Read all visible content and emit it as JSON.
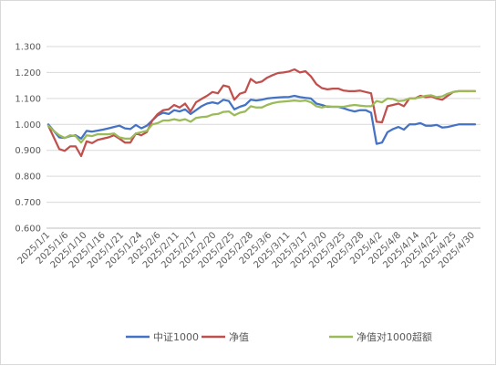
{
  "chart_data": {
    "type": "line",
    "title": "",
    "xlabel": "",
    "ylabel": "",
    "ylim": [
      0.6,
      1.3
    ],
    "yticks": [
      "0.600",
      "0.700",
      "0.800",
      "0.900",
      "1.000",
      "1.100",
      "1.200",
      "1.300"
    ],
    "ytick_values": [
      0.6,
      0.7,
      0.8,
      0.9,
      1.0,
      1.1,
      1.2,
      1.3
    ],
    "grid": true,
    "legend_position": "bottom",
    "x": [
      "2025/1/1",
      "2025/1/2",
      "2025/1/3",
      "2025/1/6",
      "2025/1/7",
      "2025/1/8",
      "2025/1/9",
      "2025/1/10",
      "2025/1/13",
      "2025/1/14",
      "2025/1/15",
      "2025/1/16",
      "2025/1/17",
      "2025/1/20",
      "2025/1/21",
      "2025/1/22",
      "2025/1/23",
      "2025/1/24",
      "2025/1/27",
      "2025/2/5",
      "2025/2/6",
      "2025/2/7",
      "2025/2/10",
      "2025/2/11",
      "2025/2/12",
      "2025/2/13",
      "2025/2/14",
      "2025/2/17",
      "2025/2/18",
      "2025/2/19",
      "2025/2/20",
      "2025/2/21",
      "2025/2/24",
      "2025/2/25",
      "2025/2/26",
      "2025/2/27",
      "2025/2/28",
      "2025/3/3",
      "2025/3/4",
      "2025/3/5",
      "2025/3/6",
      "2025/3/7",
      "2025/3/10",
      "2025/3/11",
      "2025/3/12",
      "2025/3/13",
      "2025/3/14",
      "2025/3/17",
      "2025/3/18",
      "2025/3/19",
      "2025/3/20",
      "2025/3/21",
      "2025/3/24",
      "2025/3/25",
      "2025/3/26",
      "2025/3/27",
      "2025/3/28",
      "2025/3/31",
      "2025/4/1",
      "2025/4/2",
      "2025/4/3",
      "2025/4/7",
      "2025/4/8",
      "2025/4/9",
      "2025/4/10",
      "2025/4/11",
      "2025/4/14",
      "2025/4/15",
      "2025/4/16",
      "2025/4/17",
      "2025/4/18",
      "2025/4/21",
      "2025/4/22",
      "2025/4/23",
      "2025/4/24",
      "2025/4/25",
      "2025/4/28",
      "2025/4/29",
      "2025/4/30"
    ],
    "xtick_labels": [
      "2025/1/1",
      "2025/1/6",
      "2025/1/10",
      "2025/1/16",
      "2025/1/21",
      "2025/1/24",
      "2025/2/6",
      "2025/2/11",
      "2025/2/17",
      "2025/2/20",
      "2025/2/25",
      "2025/2/28",
      "2025/3/6",
      "2025/3/11",
      "2025/3/17",
      "2025/3/20",
      "2025/3/25",
      "2025/3/28",
      "2025/4/2",
      "2025/4/8",
      "2025/4/14",
      "2025/4/22",
      "2025/4/25",
      "2025/4/30"
    ],
    "series": [
      {
        "name": "中证1000",
        "color": "#4472c4",
        "values": [
          1.0,
          0.975,
          0.95,
          0.948,
          0.955,
          0.958,
          0.945,
          0.975,
          0.972,
          0.976,
          0.98,
          0.985,
          0.99,
          0.995,
          0.985,
          0.982,
          0.998,
          0.985,
          0.995,
          1.015,
          1.035,
          1.045,
          1.04,
          1.055,
          1.05,
          1.058,
          1.04,
          1.055,
          1.07,
          1.08,
          1.085,
          1.08,
          1.095,
          1.09,
          1.058,
          1.068,
          1.075,
          1.095,
          1.092,
          1.095,
          1.1,
          1.102,
          1.104,
          1.105,
          1.106,
          1.11,
          1.105,
          1.102,
          1.1,
          1.08,
          1.075,
          1.068,
          1.068,
          1.068,
          1.062,
          1.055,
          1.05,
          1.055,
          1.055,
          1.045,
          0.925,
          0.93,
          0.97,
          0.982,
          0.99,
          0.98,
          1.0,
          1.0,
          1.005,
          0.995,
          0.995,
          0.998,
          0.988,
          0.99,
          0.995,
          1.0,
          1.0,
          1.0,
          1.0
        ]
      },
      {
        "name": "净值",
        "color": "#c0504d",
        "values": [
          0.995,
          0.95,
          0.905,
          0.898,
          0.915,
          0.915,
          0.878,
          0.935,
          0.928,
          0.94,
          0.945,
          0.95,
          0.958,
          0.945,
          0.93,
          0.93,
          0.965,
          0.958,
          0.97,
          1.015,
          1.04,
          1.055,
          1.058,
          1.075,
          1.065,
          1.08,
          1.05,
          1.085,
          1.098,
          1.11,
          1.125,
          1.12,
          1.15,
          1.145,
          1.095,
          1.118,
          1.125,
          1.175,
          1.16,
          1.165,
          1.18,
          1.19,
          1.198,
          1.2,
          1.204,
          1.212,
          1.2,
          1.205,
          1.185,
          1.155,
          1.14,
          1.135,
          1.138,
          1.138,
          1.13,
          1.128,
          1.128,
          1.13,
          1.125,
          1.12,
          1.01,
          1.008,
          1.07,
          1.075,
          1.08,
          1.07,
          1.1,
          1.1,
          1.11,
          1.105,
          1.108,
          1.1,
          1.095,
          1.11,
          1.125,
          1.128,
          1.128,
          1.128,
          1.128
        ]
      },
      {
        "name": "净值对1000超额",
        "color": "#9bbb59",
        "values": [
          0.995,
          0.975,
          0.958,
          0.948,
          0.958,
          0.955,
          0.93,
          0.958,
          0.955,
          0.962,
          0.962,
          0.962,
          0.965,
          0.95,
          0.945,
          0.945,
          0.965,
          0.97,
          0.975,
          1.0,
          1.005,
          1.015,
          1.015,
          1.02,
          1.015,
          1.02,
          1.01,
          1.025,
          1.028,
          1.03,
          1.038,
          1.04,
          1.048,
          1.05,
          1.035,
          1.045,
          1.05,
          1.07,
          1.065,
          1.065,
          1.075,
          1.082,
          1.086,
          1.088,
          1.09,
          1.092,
          1.09,
          1.092,
          1.085,
          1.07,
          1.065,
          1.07,
          1.068,
          1.068,
          1.068,
          1.072,
          1.075,
          1.072,
          1.07,
          1.07,
          1.09,
          1.085,
          1.1,
          1.098,
          1.09,
          1.092,
          1.1,
          1.1,
          1.105,
          1.11,
          1.112,
          1.105,
          1.108,
          1.118,
          1.125,
          1.128,
          1.128,
          1.128,
          1.128
        ]
      }
    ]
  }
}
